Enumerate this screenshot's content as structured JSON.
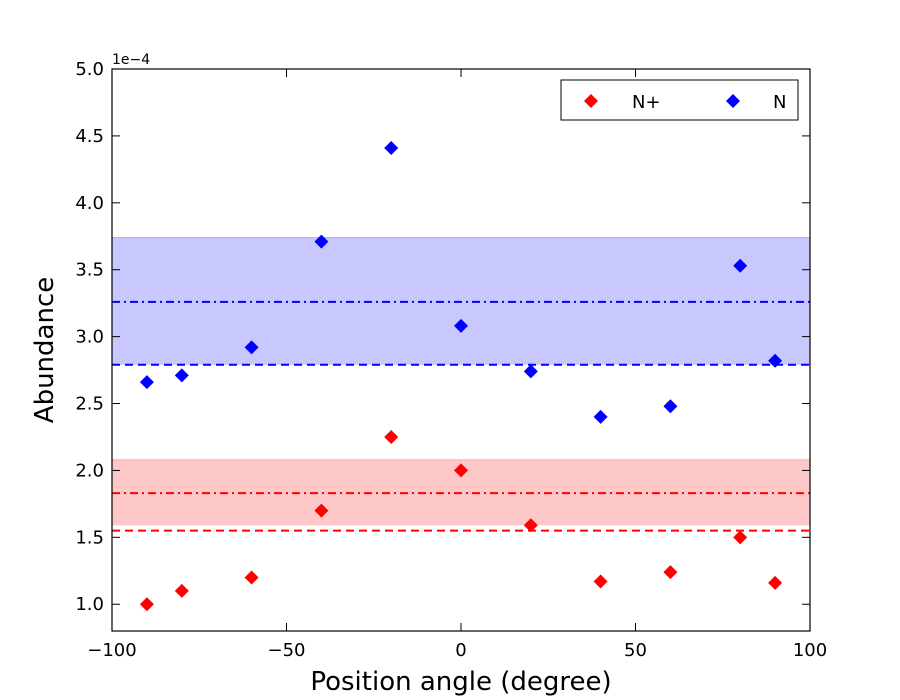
{
  "chart_data": {
    "type": "scatter",
    "xlabel": "Position angle (degree)",
    "ylabel": "Abundance",
    "xlim": [
      -100,
      100
    ],
    "ylim": [
      0.8,
      5.0
    ],
    "y_scale_label": "1e−4",
    "xticks": [
      -100,
      -50,
      0,
      50,
      100
    ],
    "xtick_labels": [
      "−100",
      "−50",
      "0",
      "50",
      "100"
    ],
    "yticks": [
      1.0,
      1.5,
      2.0,
      2.5,
      3.0,
      3.5,
      4.0,
      4.5,
      5.0
    ],
    "ytick_labels": [
      "1.0",
      "1.5",
      "2.0",
      "2.5",
      "3.0",
      "3.5",
      "4.0",
      "4.5",
      "5.0"
    ],
    "legend_position": "top-right",
    "series": [
      {
        "name": "N+",
        "color": "#ff0000",
        "marker": "diamond",
        "x": [
          -90,
          -80,
          -60,
          -40,
          -20,
          0,
          20,
          40,
          60,
          80,
          90
        ],
        "y": [
          1.0,
          1.1,
          1.2,
          1.7,
          2.25,
          2.0,
          1.59,
          1.17,
          1.24,
          1.5,
          1.16
        ],
        "band": [
          1.59,
          2.08
        ],
        "mean_line": 1.83,
        "dashed_line": 1.55,
        "band_fill": "#ffc8c8"
      },
      {
        "name": "N",
        "color": "#0000ff",
        "marker": "diamond",
        "x": [
          -90,
          -80,
          -60,
          -40,
          -20,
          0,
          20,
          40,
          60,
          80,
          90
        ],
        "y": [
          2.66,
          2.71,
          2.92,
          3.71,
          4.41,
          3.08,
          2.74,
          2.4,
          2.48,
          3.53,
          2.82
        ],
        "band": [
          2.79,
          3.74
        ],
        "mean_line": 3.26,
        "dashed_line": 2.79,
        "band_fill": "#c8c8ff"
      }
    ]
  }
}
